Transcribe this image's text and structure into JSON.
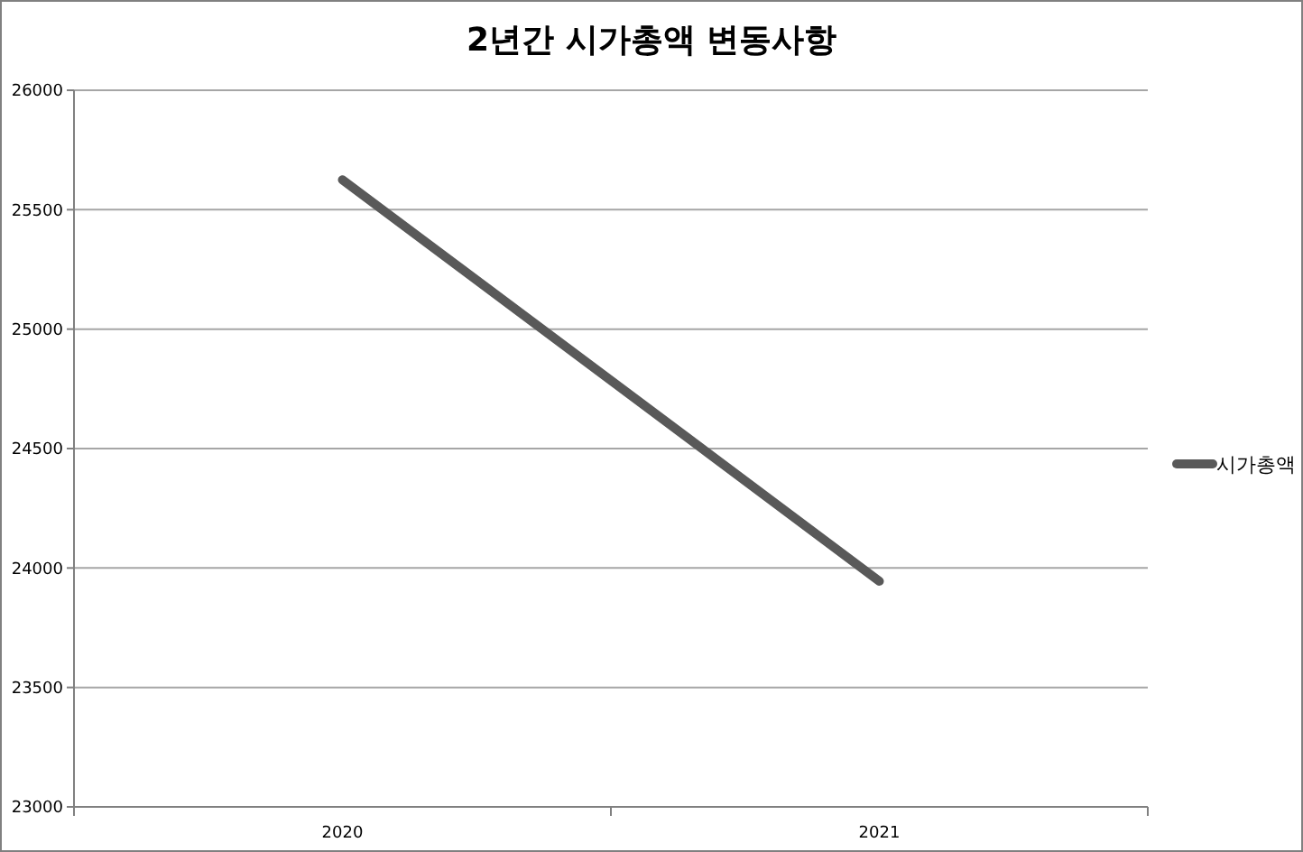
{
  "chart_data": {
    "type": "line",
    "title": "2년간 시가총액 변동사항",
    "categories": [
      "2020",
      "2021"
    ],
    "series": [
      {
        "name": "시가총액",
        "color": "#595959",
        "values": [
          25625,
          23945
        ]
      }
    ],
    "ylim": [
      23000,
      26000
    ],
    "yticks": [
      23000,
      23500,
      24000,
      24500,
      25000,
      25500,
      26000
    ],
    "grid": "y",
    "legend": "right"
  }
}
